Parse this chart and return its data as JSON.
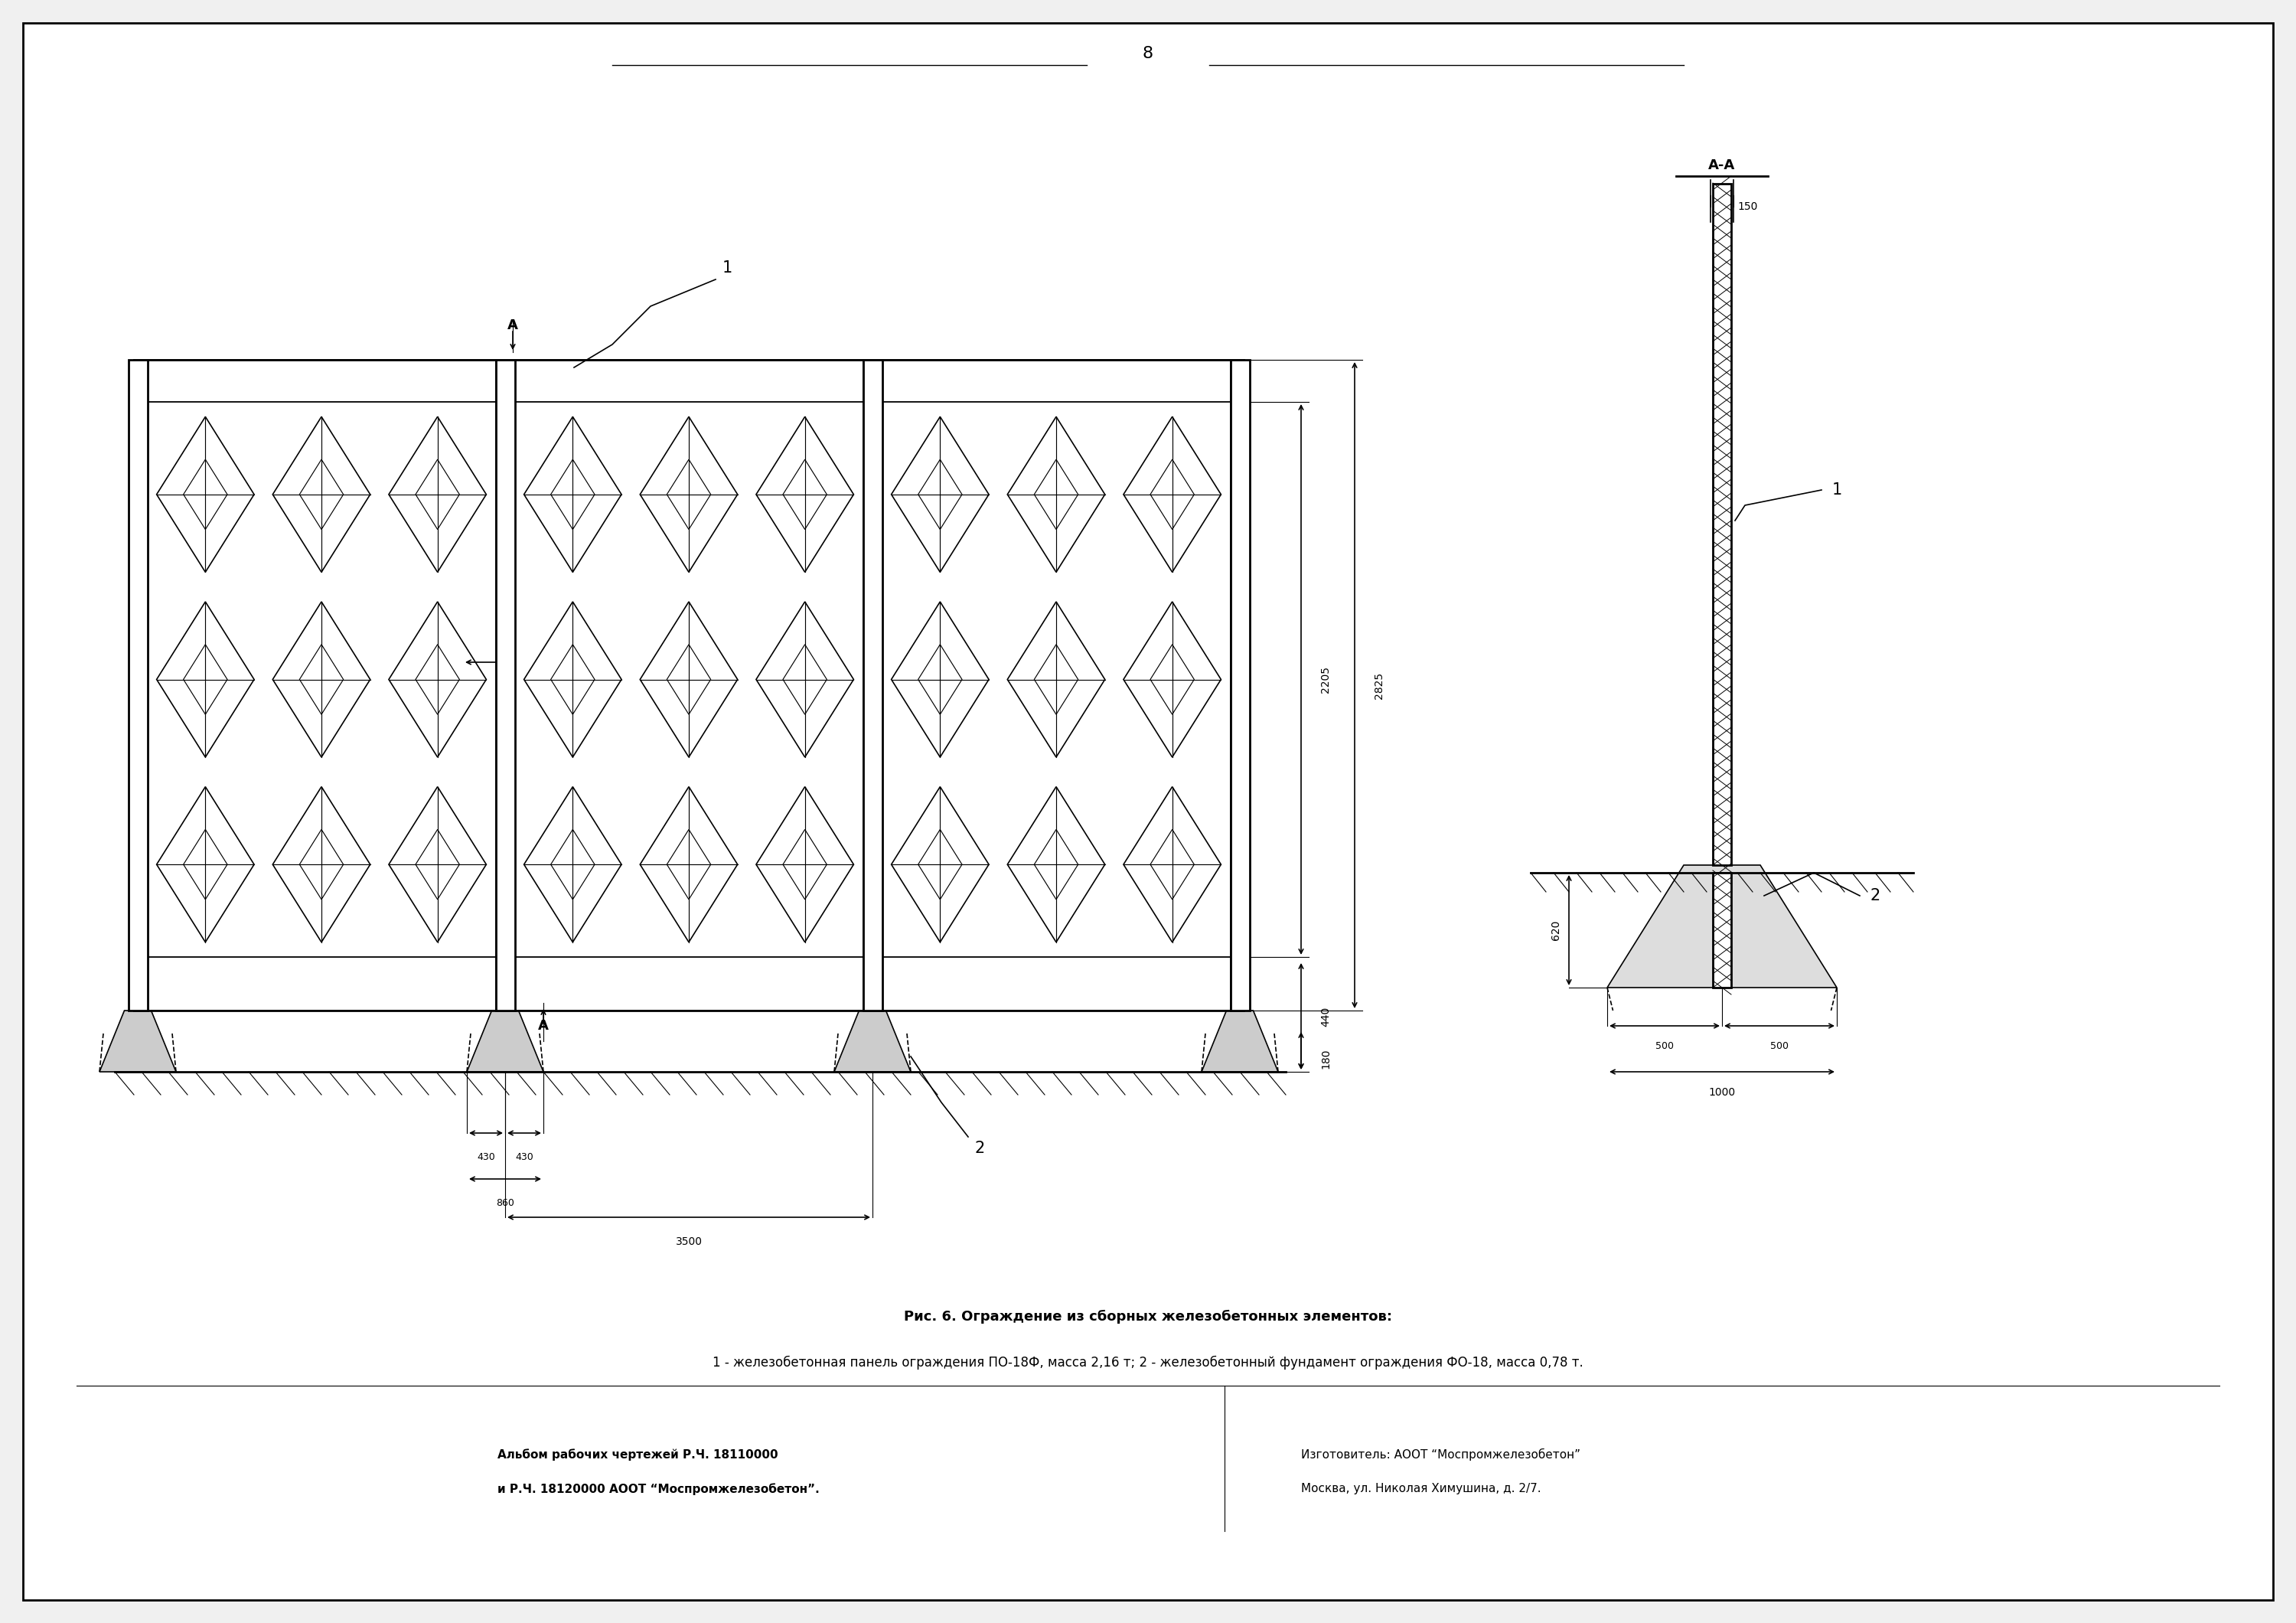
{
  "bg_color": "#f0f0f0",
  "page_bg": "#ffffff",
  "line_color": "#000000",
  "title_text": "8",
  "caption_bold": "Рис. 6. Ограждение из сборных железобетонных элементов:",
  "caption_normal": "1 - железобетонная панель ограждения ПО-18Ф, масса 2,16 т; 2 - железобетонный фундамент ограждения ФО-18, масса 0,78 т.",
  "footer_left1": "Альбом рабочих чертежей Р.Ч. 18110000",
  "footer_left2": "и Р.Ч. 18120000 АООТ “Моспромжелезобетон”.",
  "footer_right1": "Изготовитель: АООТ “Моспромжелезобетон”",
  "footer_right2": "Москва, ул. Николая Химушина, д. 2/7."
}
